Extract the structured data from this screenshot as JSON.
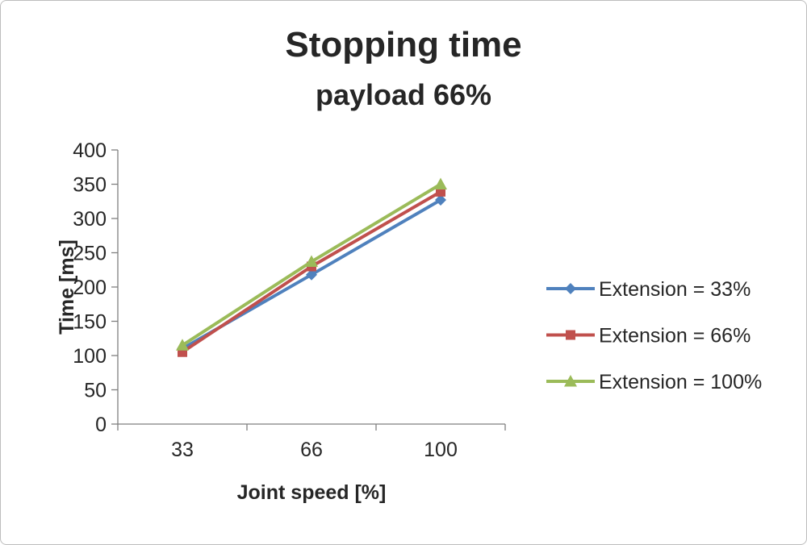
{
  "chart_data": {
    "type": "line",
    "title": "Stopping time",
    "subtitle": "payload 66%",
    "xlabel": "Joint speed [%]",
    "ylabel": "Time [ms]",
    "x": [
      "33",
      "66",
      "100"
    ],
    "ylim": [
      0,
      400
    ],
    "ytick_step": 50,
    "grid": false,
    "legend_position": "right",
    "axis_color": "#7f7f7f",
    "text_color": "#262626",
    "series": [
      {
        "name": "Extension = 33%",
        "marker": "diamond",
        "color": "#4f81bd",
        "values": [
          110,
          218,
          327
        ]
      },
      {
        "name": "Extension = 66%",
        "marker": "square",
        "color": "#c0504d",
        "values": [
          105,
          230,
          339
        ]
      },
      {
        "name": "Extension = 100%",
        "marker": "triangle",
        "color": "#9bbb59",
        "values": [
          115,
          237,
          350
        ]
      }
    ]
  }
}
